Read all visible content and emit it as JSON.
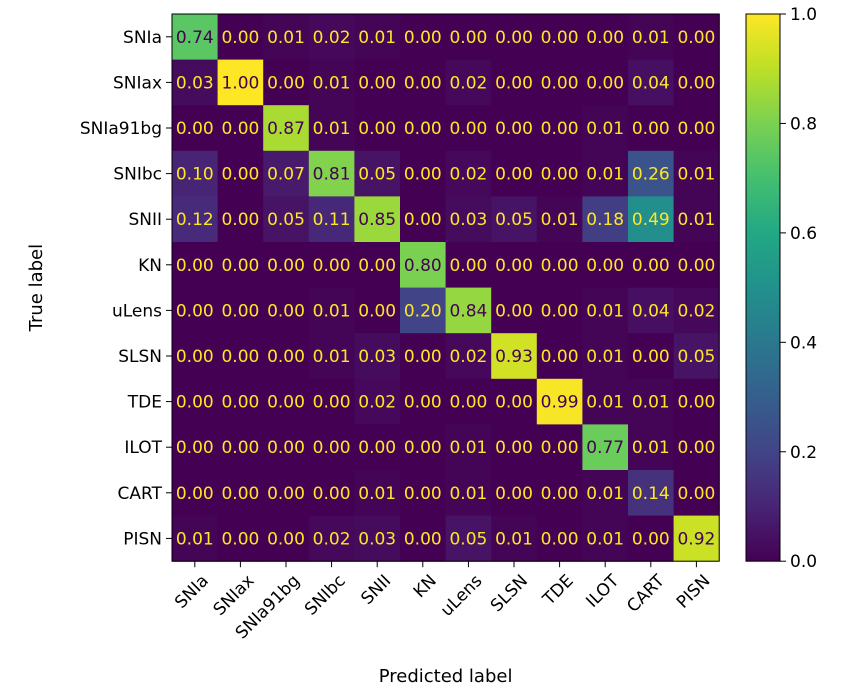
{
  "chart_data": {
    "type": "heatmap",
    "title": "",
    "xlabel": "Predicted label",
    "ylabel": "True label",
    "x_categories": [
      "SNIa",
      "SNIax",
      "SNIa91bg",
      "SNIbc",
      "SNII",
      "KN",
      "uLens",
      "SLSN",
      "TDE",
      "ILOT",
      "CART",
      "PISN"
    ],
    "y_categories": [
      "SNIa",
      "SNIax",
      "SNIa91bg",
      "SNIbc",
      "SNII",
      "KN",
      "uLens",
      "SLSN",
      "TDE",
      "ILOT",
      "CART",
      "PISN"
    ],
    "values": [
      [
        0.74,
        0.0,
        0.01,
        0.02,
        0.01,
        0.0,
        0.0,
        0.0,
        0.0,
        0.0,
        0.01,
        0.0
      ],
      [
        0.03,
        1.0,
        0.0,
        0.01,
        0.0,
        0.0,
        0.02,
        0.0,
        0.0,
        0.0,
        0.04,
        0.0
      ],
      [
        0.0,
        0.0,
        0.87,
        0.01,
        0.0,
        0.0,
        0.0,
        0.0,
        0.0,
        0.01,
        0.0,
        0.0
      ],
      [
        0.1,
        0.0,
        0.07,
        0.81,
        0.05,
        0.0,
        0.02,
        0.0,
        0.0,
        0.01,
        0.26,
        0.01
      ],
      [
        0.12,
        0.0,
        0.05,
        0.11,
        0.85,
        0.0,
        0.03,
        0.05,
        0.01,
        0.18,
        0.49,
        0.01
      ],
      [
        0.0,
        0.0,
        0.0,
        0.0,
        0.0,
        0.8,
        0.0,
        0.0,
        0.0,
        0.0,
        0.0,
        0.0
      ],
      [
        0.0,
        0.0,
        0.0,
        0.01,
        0.0,
        0.2,
        0.84,
        0.0,
        0.0,
        0.01,
        0.04,
        0.02
      ],
      [
        0.0,
        0.0,
        0.0,
        0.01,
        0.03,
        0.0,
        0.02,
        0.93,
        0.0,
        0.01,
        0.0,
        0.05
      ],
      [
        0.0,
        0.0,
        0.0,
        0.0,
        0.02,
        0.0,
        0.0,
        0.0,
        0.99,
        0.01,
        0.01,
        0.0
      ],
      [
        0.0,
        0.0,
        0.0,
        0.0,
        0.0,
        0.0,
        0.01,
        0.0,
        0.0,
        0.77,
        0.01,
        0.0
      ],
      [
        0.0,
        0.0,
        0.0,
        0.0,
        0.01,
        0.0,
        0.01,
        0.0,
        0.0,
        0.01,
        0.14,
        0.0
      ],
      [
        0.01,
        0.0,
        0.0,
        0.02,
        0.03,
        0.0,
        0.05,
        0.01,
        0.0,
        0.01,
        0.0,
        0.92
      ]
    ],
    "value_format": "0.00",
    "colormap": "viridis",
    "vmin": 0.0,
    "vmax": 1.0,
    "colorbar_ticks": [
      "0.0",
      "0.2",
      "0.4",
      "0.6",
      "0.8",
      "1.0"
    ],
    "x_tick_rotation": "45",
    "grid": false,
    "colors": {
      "text_on_dark": "#FDE725",
      "text_on_light": "#440154"
    }
  }
}
